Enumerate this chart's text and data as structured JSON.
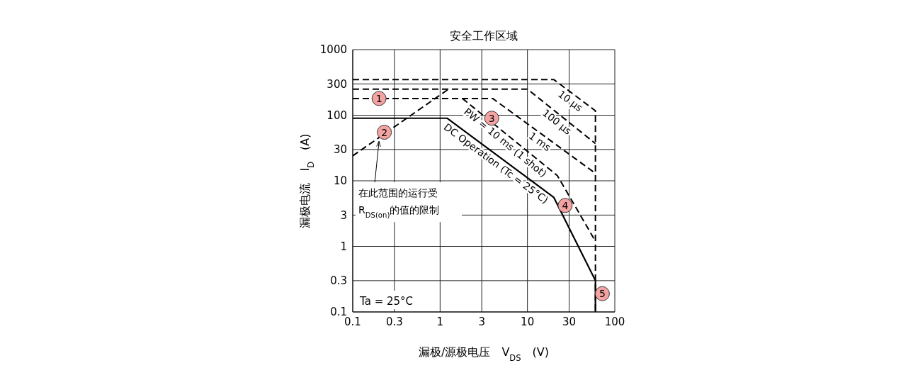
{
  "chart_data": {
    "type": "line",
    "title": "安全工作区域",
    "xlabel": "漏极/源极电压　V$_{DS}$　(V)",
    "ylabel": "漏极电流　I$_{D}$　(A)",
    "log": "xy",
    "grid": true,
    "marker": "none",
    "xlim": [
      0.1,
      100
    ],
    "xticks": [
      0.1,
      0.3,
      1,
      3,
      10,
      30,
      100
    ],
    "ylim": [
      0.1,
      1000
    ],
    "yticks": [
      0.1,
      0.3,
      1,
      3,
      10,
      30,
      100,
      300,
      1000
    ],
    "series": [
      {
        "name": "10 µs",
        "color": "#000000",
        "line_style": "dashed",
        "x": [
          0.1,
          20,
          60,
          60
        ],
        "values": [
          350,
          350,
          117,
          0.1
        ]
      },
      {
        "name": "100 µs",
        "color": "#000000",
        "line_style": "dashed",
        "x": [
          0.1,
          10,
          60
        ],
        "values": [
          250,
          250,
          37
        ]
      },
      {
        "name": "1 ms",
        "color": "#000000",
        "line_style": "dashed",
        "x": [
          0.1,
          4,
          60
        ],
        "values": [
          180,
          180,
          13
        ]
      },
      {
        "name": "PW = 10 ms (1 shot)",
        "color": "#000000",
        "line_style": "dashed",
        "x": [
          1.8,
          22,
          60
        ],
        "values": [
          180,
          12,
          1.2
        ]
      },
      {
        "name": "DC Operation (Tc = 25°C)",
        "color": "#000000",
        "line_style": "solid",
        "x": [
          0.1,
          1.2,
          20,
          60,
          60
        ],
        "values": [
          90,
          90,
          5.6,
          0.3,
          0.1
        ]
      },
      {
        "color": "#000000",
        "line_style": "dashed",
        "x": [
          0.1,
          1.25
        ],
        "values": [
          24,
          250
        ]
      }
    ],
    "annotations": [
      "Ta = 25°C",
      {
        "text": "在此范围的运行受\nR$_{DS(on)}$的值的限制",
        "x": 0.2,
        "y": 40
      },
      {
        "text": "1",
        "x": 0.2,
        "y": 180
      },
      {
        "text": "2",
        "x": 0.23,
        "y": 55
      },
      {
        "text": "3",
        "x": 3.9,
        "y": 90
      },
      {
        "text": "4",
        "x": 27,
        "y": 4.2
      },
      {
        "text": "5",
        "x": 72,
        "y": 0.19
      }
    ]
  }
}
